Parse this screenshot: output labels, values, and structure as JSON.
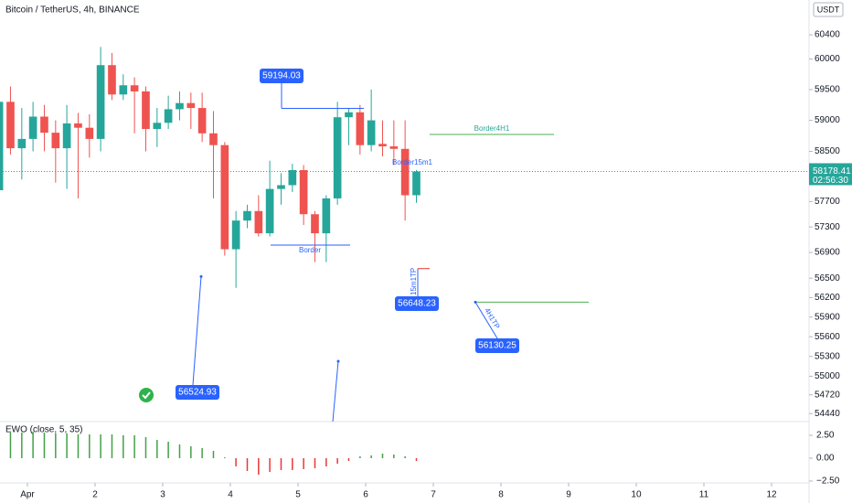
{
  "chart_data": {
    "type": "candlestick",
    "title": "Bitcoin / TetherUS, 4h, BINANCE",
    "currency": "USDT",
    "log_scale": true,
    "up_color": "#26a69a",
    "down_color": "#ef5350",
    "x": [
      0.583,
      0.75,
      0.917,
      1.083,
      1.25,
      1.417,
      1.583,
      1.75,
      1.917,
      2.083,
      2.25,
      2.417,
      2.583,
      2.75,
      2.917,
      3.083,
      3.25,
      3.417,
      3.583,
      3.75,
      3.917,
      4.083,
      4.25,
      4.417,
      4.583,
      4.75,
      4.917,
      5.083,
      5.25,
      5.417,
      5.583,
      5.75,
      5.917,
      6.083,
      6.25,
      6.417,
      6.583,
      6.75
    ],
    "open": [
      57880,
      59300,
      58550,
      58700,
      59060,
      58800,
      58550,
      58950,
      58880,
      58700,
      59900,
      59420,
      59570,
      59470,
      58860,
      58960,
      59180,
      59280,
      59200,
      58790,
      58600,
      56950,
      57400,
      57550,
      57200,
      57900,
      57960,
      58200,
      57500,
      57200,
      57750,
      59050,
      59130,
      58600,
      58620,
      58580,
      58540,
      57800
    ],
    "high": [
      59400,
      59550,
      59200,
      59300,
      59250,
      59000,
      59250,
      59120,
      59100,
      60200,
      60100,
      59750,
      59700,
      59550,
      59200,
      59400,
      59470,
      59450,
      59450,
      59150,
      58650,
      57550,
      57650,
      57800,
      58350,
      58150,
      58300,
      58280,
      57550,
      57800,
      59300,
      59200,
      59250,
      59500,
      59000,
      59000,
      59000,
      58200
    ],
    "low": [
      57800,
      58450,
      58050,
      58500,
      58500,
      58000,
      57900,
      57750,
      58400,
      58500,
      59330,
      59330,
      58790,
      58500,
      58570,
      58860,
      59000,
      58860,
      58650,
      57750,
      56850,
      56350,
      57280,
      57150,
      57150,
      57650,
      57850,
      57330,
      56750,
      56750,
      57650,
      58600,
      58450,
      58500,
      58420,
      58280,
      57400,
      57680
    ],
    "close": [
      59300,
      58550,
      58700,
      59060,
      58800,
      58550,
      58950,
      58880,
      58700,
      59900,
      59420,
      59570,
      59470,
      58860,
      58960,
      59180,
      59280,
      59200,
      58790,
      58600,
      56950,
      57400,
      57550,
      57200,
      57900,
      57960,
      58200,
      57500,
      57200,
      57750,
      59050,
      59130,
      58600,
      59000,
      58580,
      58540,
      57800,
      58178
    ],
    "xlim": [
      0.595,
      12.554
    ],
    "xticks": [
      {
        "value": 1,
        "label": "Apr"
      },
      2,
      3,
      4,
      5,
      6,
      7,
      8,
      9,
      10,
      11,
      12
    ],
    "ylim": [
      54320,
      60980
    ],
    "yticks": [
      60400,
      60000,
      59500,
      59000,
      58500,
      57700,
      57300,
      56900,
      56500,
      56200,
      55900,
      55600,
      55300,
      55000,
      54720,
      54440
    ],
    "last_price": 58178.41,
    "countdown": "02:56:30",
    "price_labels": [
      59194.03,
      56524.93,
      56648.23,
      56130.25
    ],
    "texts": [
      "Border4H1",
      "Border15m1",
      "Border",
      "15m1TP",
      "4H1TP"
    ],
    "indicator": {
      "name": "EWO (close, 5, 35)",
      "values": [
        2.8,
        2.8,
        2.8,
        2.9,
        2.8,
        2.7,
        2.7,
        2.6,
        2.6,
        2.6,
        2.6,
        2.5,
        2.5,
        2.3,
        2.0,
        1.8,
        1.5,
        1.3,
        1.1,
        0.8,
        0.1,
        -0.9,
        -1.4,
        -1.8,
        -1.5,
        -1.3,
        -1.3,
        -1.2,
        -1.1,
        -0.9,
        -0.6,
        -0.3,
        0.2,
        0.3,
        0.5,
        0.4,
        0.2,
        -0.3
      ],
      "ylim": [
        -3.5,
        4.0
      ],
      "yticks": [
        {
          "value": 2.5,
          "label": "2.50"
        },
        {
          "value": 0,
          "label": "0.00"
        },
        {
          "value": -2.5,
          "label": "−2.50"
        }
      ],
      "pos_color": "#43a047",
      "neg_color": "#e53935"
    }
  }
}
